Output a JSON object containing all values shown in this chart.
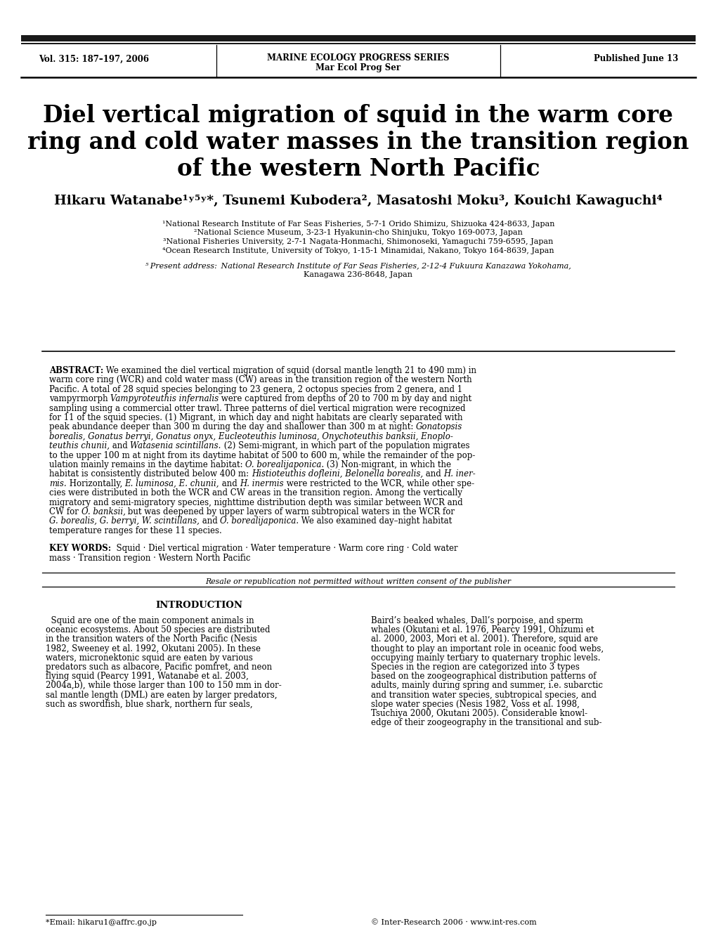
{
  "header_left": "Vol. 315: 187–197, 2006",
  "header_center_line1": "MARINE ECOLOGY PROGRESS SERIES",
  "header_center_line2": "Mar Ecol Prog Ser",
  "header_right": "Published June 13",
  "title_line1": "Diel vertical migration of squid in the warm core",
  "title_line2": "ring and cold water masses in the transition region",
  "title_line3": "of the western North Pacific",
  "affil1": "¹National Research Institute of Far Seas Fisheries, 5-7-1 Orido Shimizu, Shizuoka 424-8633, Japan",
  "affil2": "²National Science Museum, 3-23-1 Hyakunin-cho Shinjuku, Tokyo 169-0073, Japan",
  "affil3": "³National Fisheries University, 2-7-1 Nagata-Honmachi, Shimonoseki, Yamaguchi 759-6595, Japan",
  "affil4": "⁴Ocean Research Institute, University of Tokyo, 1-15-1 Minamidai, Nakano, Tokyo 164-8639, Japan",
  "affil5_line1": "⁵ Present address: National Research Institute of Far Seas Fisheries, 2-12-4 Fukuura Kanazawa Yokohama,",
  "affil5_line2": "Kanagawa 236-8648, Japan",
  "resale_note": "Resale or republication not permitted without written consent of the publisher",
  "intro_title": "INTRODUCTION",
  "footnote_email": "*Email: hikaru1@affrc.go.jp",
  "footnote_copyright": "© Inter-Research 2006 · www.int-res.com",
  "bg_color": "#ffffff"
}
